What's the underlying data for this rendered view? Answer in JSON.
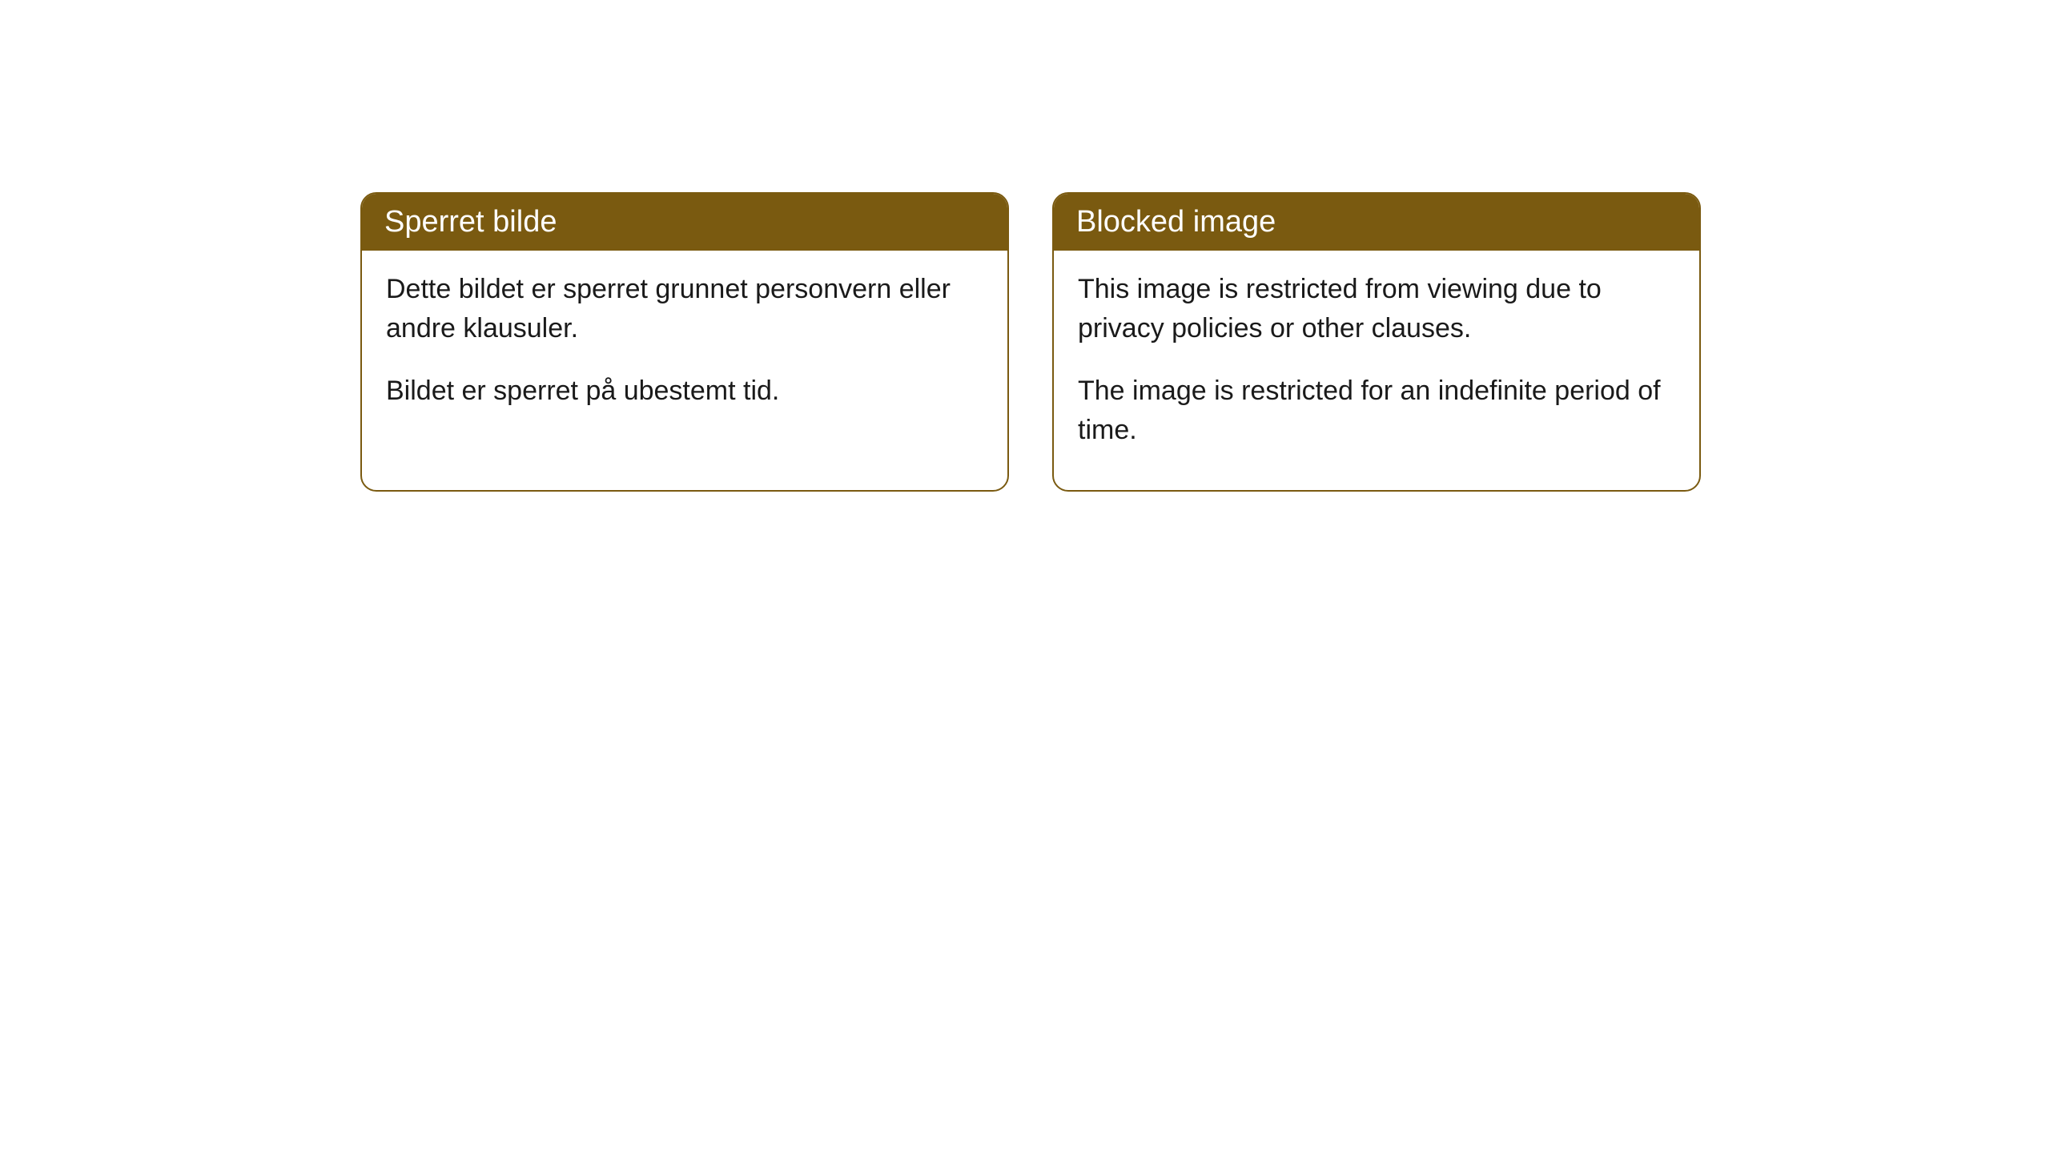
{
  "notices": [
    {
      "title": "Sperret bilde",
      "paragraph1": "Dette bildet er sperret grunnet personvern eller andre klausuler.",
      "paragraph2": "Bildet er sperret på ubestemt tid."
    },
    {
      "title": "Blocked image",
      "paragraph1": "This image is restricted from viewing due to privacy policies or other clauses.",
      "paragraph2": "The image is restricted for an indefinite period of time."
    }
  ],
  "styling": {
    "header_background_color": "#7a5a10",
    "header_text_color": "#ffffff",
    "border_color": "#7a5a10",
    "body_background_color": "#ffffff",
    "body_text_color": "#1a1a1a",
    "border_radius": "20px",
    "header_fontsize": 38,
    "body_fontsize": 34
  }
}
